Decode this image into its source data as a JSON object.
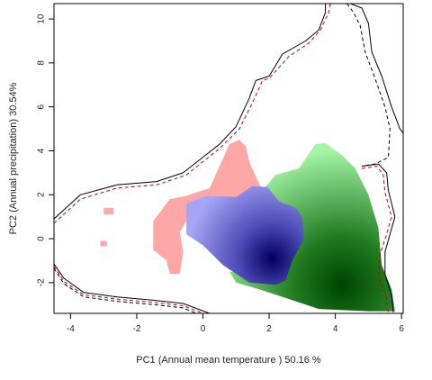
{
  "chart_data": {
    "type": "heatmap",
    "title": "",
    "xlabel": "PC1 (Annual mean temperature ) 50.16 %",
    "ylabel": "PC2 (Annual precipitation) 30.54%",
    "xlim": [
      -4.5,
      6.05
    ],
    "ylim": [
      -3.4,
      10.7
    ],
    "xticks": [
      -4,
      -2,
      0,
      2,
      4,
      6
    ],
    "yticks": [
      -2,
      0,
      2,
      4,
      6,
      8,
      10
    ],
    "legend": "none",
    "grid": false,
    "colors": {
      "red_region": "#ffa6a6",
      "blue_low": "#a5a5f5",
      "blue_high": "#02005e",
      "green_low": "#a4f4a4",
      "green_high": "#004400",
      "contour_solid": "#000000",
      "contour_dashed_red": "#cc0000",
      "contour_dashed_black": "#000000"
    },
    "series": [
      {
        "kind": "density-region",
        "color": "red_region",
        "polygon": [
          [
            -1.5,
            -0.5
          ],
          [
            -1.5,
            0.8
          ],
          [
            -1.0,
            1.8
          ],
          [
            -0.5,
            1.95
          ],
          [
            0.2,
            2.3
          ],
          [
            0.5,
            3.3
          ],
          [
            0.8,
            4.3
          ],
          [
            1.1,
            4.5
          ],
          [
            1.3,
            4.2
          ],
          [
            1.4,
            3.5
          ],
          [
            1.7,
            2.5
          ],
          [
            1.9,
            2.0
          ],
          [
            1.2,
            1.3
          ],
          [
            0.3,
            1.1
          ],
          [
            -0.5,
            0.8
          ],
          [
            -0.7,
            0.3
          ],
          [
            -0.6,
            -0.6
          ],
          [
            -0.7,
            -1.6
          ],
          [
            -1.0,
            -1.6
          ],
          [
            -1.1,
            -1.0
          ]
        ]
      },
      {
        "kind": "density-region",
        "color": "red_region",
        "polygon": [
          [
            -3.0,
            1.4
          ],
          [
            -2.7,
            1.4
          ],
          [
            -2.7,
            1.1
          ],
          [
            -3.0,
            1.1
          ]
        ]
      },
      {
        "kind": "density-region",
        "color": "red_region",
        "polygon": [
          [
            -3.1,
            -0.1
          ],
          [
            -2.9,
            -0.1
          ],
          [
            -2.9,
            -0.35
          ],
          [
            -3.1,
            -0.35
          ]
        ]
      },
      {
        "kind": "density-region",
        "color": "green_low",
        "peak": [
          4.2,
          -2.1
        ],
        "polygon": [
          [
            1.8,
            2.2
          ],
          [
            2.2,
            2.9
          ],
          [
            2.9,
            3.2
          ],
          [
            3.4,
            4.3
          ],
          [
            3.7,
            4.35
          ],
          [
            4.2,
            3.8
          ],
          [
            4.6,
            3.2
          ],
          [
            5.0,
            2.0
          ],
          [
            5.3,
            0.5
          ],
          [
            5.4,
            -1.2
          ],
          [
            5.7,
            -2.3
          ],
          [
            5.8,
            -3.3
          ],
          [
            5.0,
            -3.3
          ],
          [
            3.5,
            -3.2
          ],
          [
            2.5,
            -2.7
          ],
          [
            1.7,
            -2.3
          ],
          [
            1.0,
            -2.0
          ],
          [
            0.8,
            -1.5
          ],
          [
            2.0,
            -1.7
          ],
          [
            2.6,
            -0.5
          ]
        ]
      },
      {
        "kind": "density-region",
        "color": "blue_low",
        "peak": [
          2.1,
          -0.9
        ],
        "polygon": [
          [
            -0.5,
            1.6
          ],
          [
            0.1,
            1.95
          ],
          [
            1.0,
            1.9
          ],
          [
            1.5,
            2.4
          ],
          [
            1.95,
            2.35
          ],
          [
            2.3,
            1.7
          ],
          [
            2.8,
            1.4
          ],
          [
            3.0,
            1.0
          ],
          [
            3.05,
            0.0
          ],
          [
            2.7,
            -1.0
          ],
          [
            2.5,
            -1.9
          ],
          [
            2.2,
            -2.1
          ],
          [
            1.4,
            -2.0
          ],
          [
            0.6,
            -1.2
          ],
          [
            0.0,
            -0.3
          ],
          [
            -0.5,
            0.2
          ]
        ]
      },
      {
        "kind": "contour",
        "style": "solid",
        "color": "contour_solid",
        "points": [
          [
            -4.5,
            0.9
          ],
          [
            -3.7,
            2.0
          ],
          [
            -2.6,
            2.45
          ],
          [
            -1.4,
            2.6
          ],
          [
            -0.6,
            3.0
          ],
          [
            0.5,
            4.3
          ],
          [
            1.0,
            5.1
          ],
          [
            1.4,
            6.4
          ],
          [
            1.6,
            7.2
          ],
          [
            2.0,
            7.4
          ],
          [
            2.4,
            8.4
          ],
          [
            3.1,
            9.0
          ],
          [
            3.5,
            9.5
          ],
          [
            3.7,
            10.3
          ],
          [
            3.7,
            10.7
          ]
        ]
      },
      {
        "kind": "contour",
        "style": "dashed",
        "color": "contour_dashed_red",
        "points": [
          [
            -4.5,
            0.7
          ],
          [
            -3.7,
            1.8
          ],
          [
            -2.6,
            2.3
          ],
          [
            -1.4,
            2.45
          ],
          [
            -0.5,
            2.9
          ],
          [
            0.5,
            4.1
          ],
          [
            1.1,
            5.0
          ],
          [
            1.5,
            6.2
          ],
          [
            1.8,
            7.2
          ],
          [
            2.0,
            7.3
          ],
          [
            2.6,
            8.3
          ],
          [
            3.2,
            8.9
          ],
          [
            3.55,
            9.5
          ],
          [
            3.8,
            10.3
          ],
          [
            3.85,
            10.7
          ]
        ]
      },
      {
        "kind": "contour",
        "style": "solid",
        "color": "contour_solid",
        "points": [
          [
            4.45,
            10.7
          ],
          [
            4.8,
            10.5
          ],
          [
            5.0,
            9.8
          ],
          [
            5.1,
            8.5
          ],
          [
            5.4,
            7.4
          ],
          [
            5.7,
            6.0
          ],
          [
            5.95,
            5.0
          ],
          [
            6.05,
            4.8
          ]
        ]
      },
      {
        "kind": "contour",
        "style": "dashed",
        "color": "contour_dashed_black",
        "points": [
          [
            4.35,
            10.7
          ],
          [
            4.55,
            10.3
          ],
          [
            4.75,
            9.7
          ],
          [
            4.9,
            8.5
          ],
          [
            5.2,
            7.3
          ],
          [
            5.5,
            6.0
          ],
          [
            5.65,
            5.0
          ],
          [
            5.6,
            3.7
          ],
          [
            5.2,
            3.4
          ],
          [
            4.8,
            3.3
          ]
        ]
      },
      {
        "kind": "contour",
        "style": "solid",
        "color": "contour_solid",
        "points": [
          [
            4.8,
            3.3
          ],
          [
            5.3,
            3.4
          ],
          [
            5.55,
            3.0
          ],
          [
            5.6,
            2.2
          ],
          [
            5.8,
            1.0
          ],
          [
            5.65,
            0.2
          ],
          [
            5.5,
            -0.6
          ],
          [
            5.5,
            -1.6
          ],
          [
            5.7,
            -2.6
          ],
          [
            5.75,
            -3.35
          ]
        ]
      },
      {
        "kind": "contour",
        "style": "dashed",
        "color": "contour_dashed_red",
        "points": [
          [
            4.8,
            3.2
          ],
          [
            5.25,
            3.3
          ],
          [
            5.45,
            2.9
          ],
          [
            5.5,
            2.1
          ],
          [
            5.7,
            1.0
          ],
          [
            5.55,
            0.2
          ],
          [
            5.35,
            -0.7
          ],
          [
            5.3,
            -1.7
          ],
          [
            5.55,
            -2.7
          ],
          [
            5.6,
            -3.35
          ]
        ]
      },
      {
        "kind": "contour",
        "style": "solid",
        "color": "contour_solid",
        "points": [
          [
            -4.5,
            -1.15
          ],
          [
            -4.2,
            -1.8
          ],
          [
            -3.6,
            -2.45
          ],
          [
            -2.6,
            -2.65
          ],
          [
            -1.5,
            -2.8
          ],
          [
            -0.6,
            -2.95
          ],
          [
            0.2,
            -3.4
          ]
        ]
      },
      {
        "kind": "contour",
        "style": "dashed",
        "color": "contour_dashed_red",
        "points": [
          [
            -4.5,
            -1.25
          ],
          [
            -4.2,
            -1.95
          ],
          [
            -3.6,
            -2.55
          ],
          [
            -2.6,
            -2.75
          ],
          [
            -1.5,
            -2.9
          ],
          [
            -0.6,
            -3.05
          ],
          [
            0.0,
            -3.4
          ]
        ]
      },
      {
        "kind": "contour",
        "style": "dashed",
        "color": "contour_dashed_black",
        "points": [
          [
            -4.5,
            -1.35
          ],
          [
            -4.2,
            -2.05
          ],
          [
            -3.6,
            -2.65
          ],
          [
            -2.6,
            -2.85
          ],
          [
            -1.5,
            -3.0
          ],
          [
            -0.6,
            -3.15
          ],
          [
            -0.2,
            -3.4
          ]
        ]
      }
    ]
  }
}
